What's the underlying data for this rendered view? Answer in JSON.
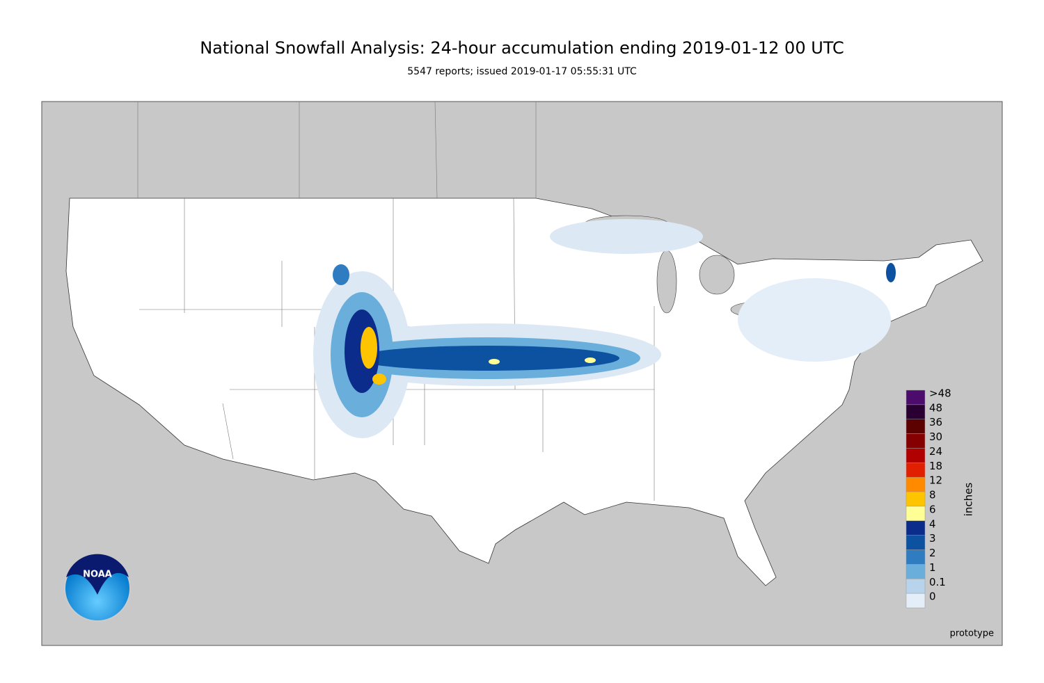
{
  "header": {
    "title": "National Snowfall Analysis: 24-hour accumulation ending 2019-01-12 00 UTC",
    "subtitle": "5547 reports; issued 2019-01-17 05:55:31 UTC"
  },
  "legend": {
    "unit": "inches",
    "items": [
      {
        "label": ">48",
        "color": "#4b0c6b"
      },
      {
        "label": "48",
        "color": "#2a0033"
      },
      {
        "label": "36",
        "color": "#5c0000"
      },
      {
        "label": "30",
        "color": "#850000"
      },
      {
        "label": "24",
        "color": "#b00000"
      },
      {
        "label": "18",
        "color": "#e02000"
      },
      {
        "label": "12",
        "color": "#ff8a00"
      },
      {
        "label": "8",
        "color": "#ffc400"
      },
      {
        "label": "6",
        "color": "#ffff96"
      },
      {
        "label": "4",
        "color": "#0c2c8c"
      },
      {
        "label": "3",
        "color": "#0d52a0"
      },
      {
        "label": "2",
        "color": "#2f7cc0"
      },
      {
        "label": "1",
        "color": "#6aaedc"
      },
      {
        "label": "0.1",
        "color": "#b8d4ec"
      },
      {
        "label": "0",
        "color": "#e4eef8"
      }
    ]
  },
  "logo": "NOAA",
  "footer": "prototype"
}
